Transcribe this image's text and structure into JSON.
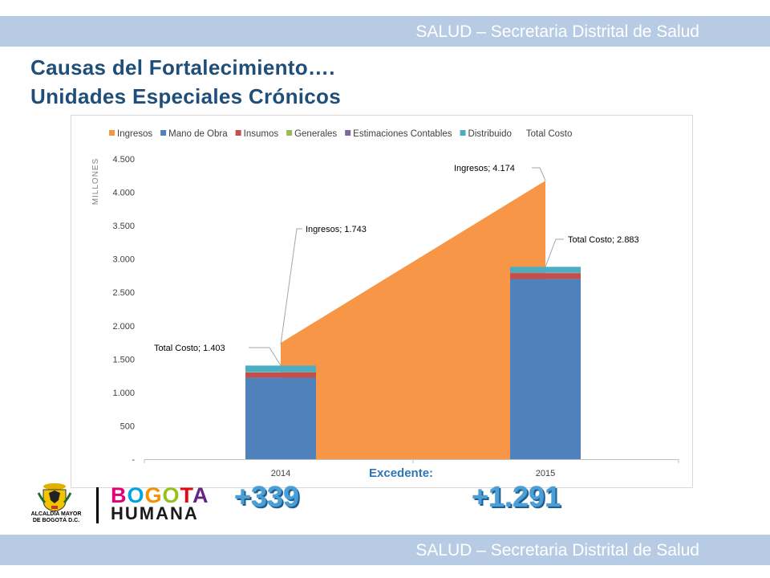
{
  "header": {
    "band_text": "SALUD – Secretaria Distrital de Salud"
  },
  "footer": {
    "band_text": "SALUD – Secretaria Distrital de Salud"
  },
  "title": {
    "line1": "Causas del Fortalecimiento….",
    "line2": "Unidades Especiales Crónicos"
  },
  "chart_data": {
    "type": "bar",
    "stacked": true,
    "categories": [
      "2014",
      "2015"
    ],
    "ylabel": "MILLONES",
    "ylim": [
      0,
      4500
    ],
    "yticks": [
      "-",
      "500",
      "1.000",
      "1.500",
      "2.000",
      "2.500",
      "3.000",
      "3.500",
      "4.000",
      "4.500"
    ],
    "ytick_values": [
      0,
      500,
      1000,
      1500,
      2000,
      2500,
      3000,
      3500,
      4000,
      4500
    ],
    "legend_position": "top",
    "grid": false,
    "area_series": {
      "name": "Ingresos",
      "color": "#f79646",
      "values": [
        1743,
        4174
      ]
    },
    "series": [
      {
        "name": "Mano de Obra",
        "color": "#4f81bd",
        "values": [
          1220,
          2700
        ]
      },
      {
        "name": "Insumos",
        "color": "#c0504d",
        "values": [
          80,
          90
        ]
      },
      {
        "name": "Generales",
        "color": "#9bbb59",
        "values": [
          5,
          5
        ]
      },
      {
        "name": "Estimaciones Contables",
        "color": "#8064a2",
        "values": [
          3,
          3
        ]
      },
      {
        "name": "Distribuido",
        "color": "#4bacc6",
        "values": [
          95,
          85
        ]
      }
    ],
    "total_costo": {
      "name": "Total Costo",
      "values": [
        1403,
        2883
      ]
    },
    "annotations": [
      {
        "text": "Ingresos;  1.743"
      },
      {
        "text": "Ingresos;  4.174"
      },
      {
        "text": "Total Costo;  1.403"
      },
      {
        "text": "Total Costo;  2.883"
      }
    ]
  },
  "excedente": {
    "label": "Excedente:",
    "values": [
      "+339",
      "+1.291"
    ]
  },
  "logos": {
    "alcaldia_line1": "ALCALDÍA MAYOR",
    "alcaldia_line2": "DE BOGOTÁ D.C.",
    "bogota_letters": [
      "B",
      "O",
      "G",
      "O",
      "T",
      "A"
    ],
    "bogota_colors": [
      "#e2007a",
      "#00a4dd",
      "#f39200",
      "#95c11f",
      "#e30613",
      "#662483"
    ],
    "humana": "HUMANA"
  }
}
